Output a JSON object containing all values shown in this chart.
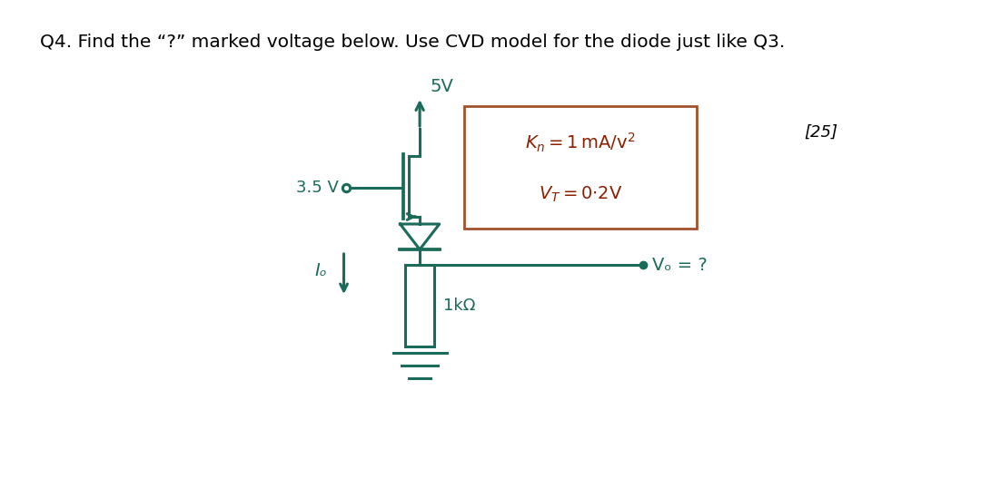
{
  "title": "Q4. Find the “?” marked voltage below. Use CVD model for the diode just like Q3.",
  "title_fontsize": 14.5,
  "bg_color": "#ffffff",
  "circuit_color": "#1a6b5a",
  "box_border_color": "#a0522d",
  "text_color": "#8b2000",
  "label_color": "#1a6b5a",
  "supply_label": "5V",
  "input_label": "3.5 V",
  "score_label": "[25]",
  "io_label": "Iₒ",
  "res_label": "1kΩ",
  "vo_label": "Vₒ = ?",
  "box_text_line1": "Kₙ = 1 mA/v²",
  "box_text_line2": "Vᵀ = 0·2V"
}
